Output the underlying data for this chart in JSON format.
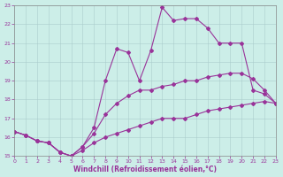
{
  "xlabel": "Windchill (Refroidissement éolien,°C)",
  "xlim": [
    0,
    23
  ],
  "ylim": [
    15,
    23
  ],
  "xticks": [
    0,
    1,
    2,
    3,
    4,
    5,
    6,
    7,
    8,
    9,
    10,
    11,
    12,
    13,
    14,
    15,
    16,
    17,
    18,
    19,
    20,
    21,
    22,
    23
  ],
  "yticks": [
    15,
    16,
    17,
    18,
    19,
    20,
    21,
    22,
    23
  ],
  "background_color": "#cceee8",
  "grid_color": "#aacccc",
  "line_color": "#993399",
  "line1_x": [
    0,
    1,
    2,
    3,
    4,
    5,
    6,
    7,
    8,
    9,
    10,
    11,
    12,
    13,
    14,
    15,
    16,
    17,
    18,
    19,
    20,
    21,
    22,
    23
  ],
  "line1_y": [
    16.3,
    16.1,
    15.8,
    15.7,
    15.2,
    15.0,
    15.3,
    15.7,
    16.0,
    16.2,
    16.4,
    16.6,
    16.8,
    17.0,
    17.0,
    17.0,
    17.2,
    17.4,
    17.5,
    17.6,
    17.7,
    17.8,
    17.9,
    17.8
  ],
  "line2_x": [
    0,
    1,
    2,
    3,
    4,
    5,
    6,
    7,
    8,
    9,
    10,
    11,
    12,
    13,
    14,
    15,
    16,
    17,
    18,
    19,
    20,
    21,
    22,
    23
  ],
  "line2_y": [
    16.3,
    16.1,
    15.8,
    15.7,
    15.2,
    15.0,
    15.5,
    16.2,
    17.2,
    17.8,
    18.2,
    18.5,
    18.5,
    18.7,
    18.8,
    19.0,
    19.0,
    19.2,
    19.3,
    19.4,
    19.4,
    19.1,
    18.5,
    17.8
  ],
  "line3_x": [
    0,
    1,
    2,
    3,
    4,
    5,
    6,
    7,
    8,
    9,
    10,
    11,
    12,
    13,
    14,
    15,
    16,
    17,
    18,
    19,
    20,
    21,
    22,
    23
  ],
  "line3_y": [
    16.3,
    16.1,
    15.8,
    15.7,
    15.2,
    15.0,
    15.5,
    16.5,
    19.0,
    20.7,
    20.5,
    19.0,
    20.6,
    22.9,
    22.2,
    22.3,
    22.3,
    21.8,
    21.0,
    21.0,
    21.0,
    18.5,
    18.3,
    17.8
  ]
}
